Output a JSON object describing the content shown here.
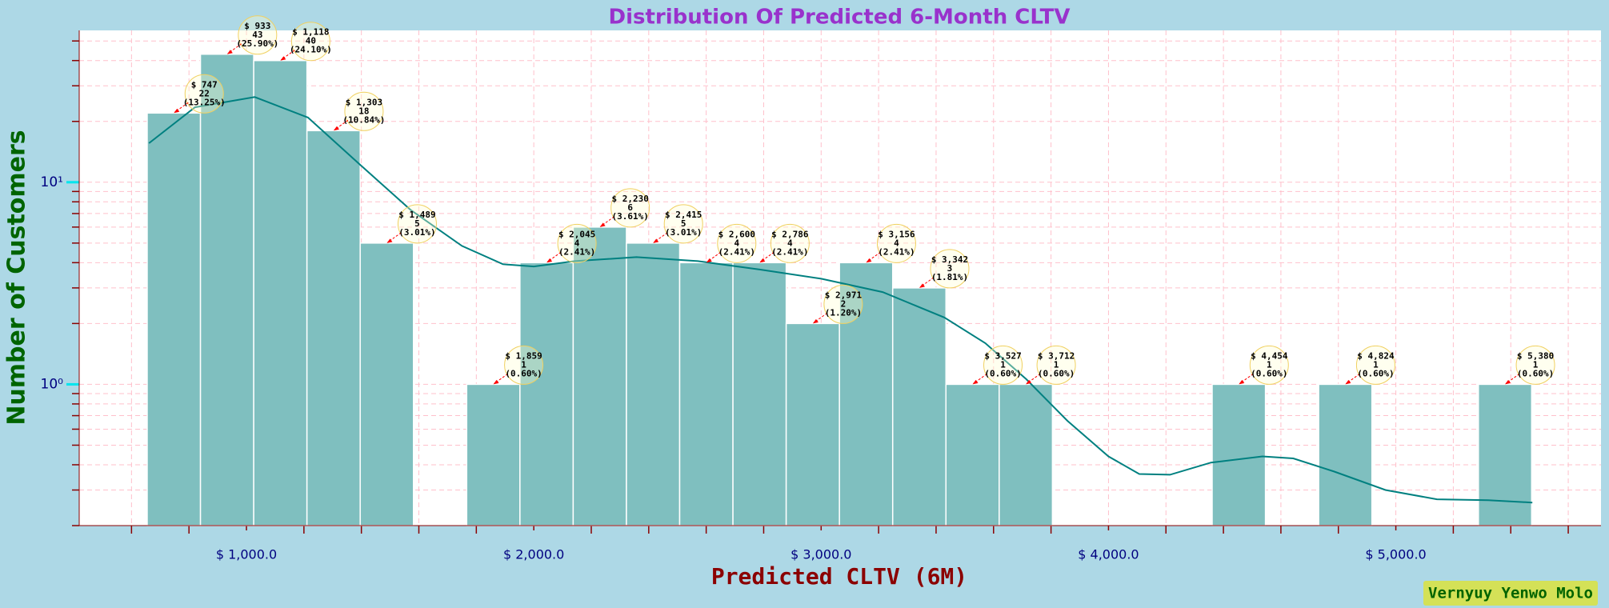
{
  "chart_data": {
    "type": "histogram",
    "title": "Distribution Of Predicted 6-Month CLTV",
    "x_label": "Predicted CLTV (6M)",
    "y_label": "Number of Customers",
    "bins": [
      654.6,
      840.0,
      1025.3,
      1210.6,
      1395.9,
      1581.2,
      1766.5,
      1951.8,
      2137.1,
      2322.4,
      2507.7,
      2693.1,
      2878.4,
      3063.7,
      3249.0,
      3434.3,
      3619.6,
      3804.9,
      3990.2,
      4175.5,
      4360.8,
      4546.2,
      4731.5,
      4916.8,
      5102.1,
      5287.4,
      5472.7
    ],
    "values": [
      22,
      43,
      40,
      18,
      5,
      0,
      1,
      4,
      6,
      5,
      4,
      4,
      2,
      4,
      3,
      1,
      1,
      0,
      0,
      0,
      1,
      0,
      1,
      0,
      0,
      1
    ],
    "bin_labels": [
      "$ 747",
      "$ 933",
      "$ 1,118",
      "$ 1,303",
      "$ 1,489",
      null,
      "$ 1,859",
      "$ 2,045",
      "$ 2,230",
      "$ 2,415",
      "$ 2,600",
      "$ 2,786",
      "$ 2,971",
      "$ 3,156",
      "$ 3,342",
      "$ 3,527",
      "$ 3,712",
      null,
      null,
      null,
      "$ 4,454",
      null,
      "$ 4,824",
      null,
      null,
      "$ 5,380"
    ],
    "percent_labels": [
      "(13.25%)",
      "(25.90%)",
      "(24.10%)",
      "(10.84%)",
      "(3.01%)",
      null,
      "(0.60%)",
      "(2.41%)",
      "(3.61%)",
      "(3.01%)",
      "(2.41%)",
      "(2.41%)",
      "(1.20%)",
      "(2.41%)",
      "(1.81%)",
      "(0.60%)",
      "(0.60%)",
      null,
      null,
      null,
      "(0.60%)",
      null,
      "(0.60%)",
      null,
      null,
      "(0.60%)"
    ],
    "color": "#7fbfbf",
    "edge_color": "#ffffff",
    "kde": {
      "color": "#008080",
      "x": [
        660.7,
        821,
        1029,
        1214,
        1393,
        1571,
        1750,
        1893,
        2000,
        2143,
        2357,
        2571,
        2786,
        3000,
        3214,
        3429,
        3571,
        3714,
        3857,
        4000,
        4107,
        4214,
        4357,
        4536,
        4643,
        4786,
        4964,
        5143,
        5321,
        5475
      ],
      "values": [
        15.6,
        23.5,
        26.4,
        20.9,
        12.3,
        7.3,
        4.84,
        3.93,
        3.83,
        4.07,
        4.26,
        4.07,
        3.7,
        3.33,
        2.86,
        2.14,
        1.6,
        1.06,
        0.66,
        0.44,
        0.36,
        0.357,
        0.41,
        0.44,
        0.43,
        0.37,
        0.3,
        0.27,
        0.267,
        0.26
      ]
    },
    "xlim": [
      418,
      5714
    ],
    "xticks": [
      {
        "value": 1000,
        "label": "$ 1,000.0"
      },
      {
        "value": 2000,
        "label": "$ 2,000.0"
      },
      {
        "value": 3000,
        "label": "$ 3,000.0"
      },
      {
        "value": 4000,
        "label": "$ 4,000.0"
      },
      {
        "value": 5000,
        "label": "$ 5,000.0"
      }
    ],
    "xminorticks": [
      600,
      800,
      1200,
      1400,
      1600,
      1800,
      2200,
      2400,
      2600,
      2800,
      3200,
      3400,
      3600,
      3800,
      4200,
      4400,
      4600,
      4800,
      5200,
      5400,
      5600
    ],
    "ylim": [
      0.2,
      56.4
    ],
    "log_y": true,
    "yticks": [
      {
        "value": 1,
        "label": "10⁰"
      },
      {
        "value": 10,
        "label": "10¹"
      }
    ],
    "yminorticks": [
      0.2,
      0.3,
      0.4,
      0.5,
      0.6,
      0.7,
      0.8,
      0.9,
      2,
      3,
      4,
      5,
      6,
      7,
      8,
      9,
      20,
      30,
      40,
      50
    ],
    "grid": true
  },
  "watermark": "Vernyuy Yenwo Molo"
}
